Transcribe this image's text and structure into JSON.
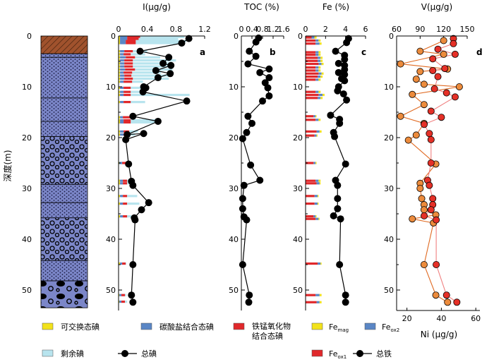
{
  "figure": {
    "depth_axis_label": "深度(m)",
    "depth_ticks": [
      "0",
      "10",
      "20",
      "30",
      "40",
      "50"
    ],
    "depth_range": [
      0,
      53
    ],
    "lithology": [
      {
        "name": "hatched-top",
        "from": 0,
        "to": 3.5,
        "fill": "#A0522D"
      },
      {
        "name": "blue-dotted-thin-1",
        "from": 3.5,
        "to": 4.2,
        "fill": "#7B86C8"
      },
      {
        "name": "blue-dotted-1",
        "from": 4.2,
        "to": 12.2,
        "fill": "#7B86C8"
      },
      {
        "name": "blue-dotted-2",
        "from": 12.2,
        "to": 16.8,
        "fill": "#7B86C8"
      },
      {
        "name": "blue-dotted-3",
        "from": 16.8,
        "to": 19.8,
        "fill": "#7B86C8"
      },
      {
        "name": "pebbly-1",
        "from": 19.8,
        "to": 29.2,
        "fill": "#7B86C8"
      },
      {
        "name": "blue-dotted-4",
        "from": 29.2,
        "to": 32.8,
        "fill": "#7B86C8"
      },
      {
        "name": "blue-dotted-5",
        "from": 32.8,
        "to": 35.8,
        "fill": "#7B86C8"
      },
      {
        "name": "pebbly-2",
        "from": 35.8,
        "to": 44.2,
        "fill": "#7B86C8"
      },
      {
        "name": "blue-dotted-6",
        "from": 44.2,
        "to": 48.2,
        "fill": "#7B86C8"
      },
      {
        "name": "cobbles",
        "from": 48.2,
        "to": 53.5,
        "fill": "#7B86C8"
      }
    ]
  },
  "chart_data": [
    {
      "id": "a",
      "type": "bar+line",
      "panel_label": "a",
      "title": "I(μg/g)",
      "xlim": [
        0,
        1.2
      ],
      "xticks": [
        "0",
        "0.4",
        "0.8",
        "1.2"
      ],
      "depth_range": [
        0,
        53
      ],
      "bar_depths": [
        0.2,
        0.6,
        1.0,
        1.4,
        3.0,
        3.6,
        4.2,
        4.8,
        5.4,
        6.0,
        6.6,
        7.2,
        7.8,
        8.4,
        9.0,
        10.2,
        11.0,
        11.6,
        13.0,
        16.0,
        16.6,
        17.0,
        18.8,
        19.4,
        25.0,
        28.5,
        29.0,
        31.5,
        33.0,
        35.5,
        44.8,
        51.0,
        52.3
      ],
      "bar_segments": [
        [
          0.02,
          0.1,
          0.18,
          0.62
        ],
        [
          0.02,
          0.1,
          0.16,
          0.55
        ],
        [
          0.02,
          0.08,
          0.14,
          0.7
        ],
        [
          0.02,
          0.08,
          0.14,
          0.63
        ],
        [
          0.02,
          0.06,
          0.12,
          0.2
        ],
        [
          0.02,
          0.05,
          0.1,
          0.2
        ],
        [
          0.02,
          0.08,
          0.13,
          0.35
        ],
        [
          0.02,
          0.06,
          0.12,
          0.6
        ],
        [
          0.02,
          0.06,
          0.12,
          0.55
        ],
        [
          0.02,
          0.06,
          0.12,
          0.55
        ],
        [
          0.02,
          0.07,
          0.14,
          0.52
        ],
        [
          0.02,
          0.05,
          0.12,
          0.4
        ],
        [
          0.02,
          0.06,
          0.1,
          0.55
        ],
        [
          0.02,
          0.06,
          0.12,
          0.5
        ],
        [
          0.02,
          0.05,
          0.12,
          0.15
        ],
        [
          0.02,
          0.05,
          0.1,
          0.22
        ],
        [
          0.02,
          0.05,
          0.1,
          0.2
        ],
        [
          0.02,
          0.05,
          0.1,
          0.82
        ],
        [
          0.02,
          0.05,
          0.1,
          0.2
        ],
        [
          0.02,
          0.04,
          0.1,
          0.04
        ],
        [
          0.02,
          0.05,
          0.1,
          0.4
        ],
        [
          0.02,
          0.05,
          0.1,
          0.4
        ],
        [
          0.02,
          0.05,
          0.08,
          0.12
        ],
        [
          0.02,
          0.05,
          0.08,
          0.08
        ],
        [
          0.01,
          0.04,
          0.06,
          0.03
        ],
        [
          0.02,
          0.04,
          0.06,
          0.06
        ],
        [
          0.02,
          0.04,
          0.06,
          0.1
        ],
        [
          0.02,
          0.04,
          0.06,
          0.14
        ],
        [
          0.02,
          0.04,
          0.06,
          0.17
        ],
        [
          0.02,
          0.04,
          0.06,
          0.06
        ],
        [
          0.02,
          0.03,
          0.05,
          0.01
        ],
        [
          0.01,
          0.03,
          0.05,
          0.02
        ],
        [
          0.01,
          0.03,
          0.05,
          0.03
        ]
      ],
      "segment_colors": [
        "#F2E21B",
        "#5A86C5",
        "#E0282B",
        "#B8E4EE"
      ],
      "line_points": [
        [
          0.98,
          0.5
        ],
        [
          0.88,
          1.4
        ],
        [
          0.3,
          3.0
        ],
        [
          0.7,
          4.2
        ],
        [
          0.62,
          5.4
        ],
        [
          0.73,
          5.8
        ],
        [
          0.52,
          6.8
        ],
        [
          0.72,
          7.4
        ],
        [
          0.55,
          8.2
        ],
        [
          0.35,
          10.0
        ],
        [
          0.38,
          10.2
        ],
        [
          0.34,
          11.0
        ],
        [
          0.95,
          12.8
        ],
        [
          0.2,
          15.8
        ],
        [
          0.55,
          16.8
        ],
        [
          0.12,
          19.4
        ],
        [
          0.35,
          19.2
        ],
        [
          0.1,
          20.4
        ],
        [
          0.14,
          25.2
        ],
        [
          0.18,
          28.6
        ],
        [
          0.2,
          29.4
        ],
        [
          0.42,
          32.8
        ],
        [
          0.32,
          34.2
        ],
        [
          0.22,
          35.8
        ],
        [
          0.23,
          36.2
        ],
        [
          0.2,
          45.0
        ],
        [
          0.18,
          51.0
        ],
        [
          0.2,
          52.4
        ]
      ]
    },
    {
      "id": "b",
      "type": "line",
      "panel_label": "b",
      "title": "TOC (%)",
      "xlim": [
        0,
        1.6
      ],
      "xticks": [
        "0",
        "0.4",
        "0.8",
        "1.2",
        "1.6"
      ],
      "depth_range": [
        0,
        53
      ],
      "line_points": [
        [
          0.65,
          0.4
        ],
        [
          0.55,
          1.2
        ],
        [
          0.3,
          3.0
        ],
        [
          0.55,
          4.0
        ],
        [
          0.25,
          5.5
        ],
        [
          1.05,
          6.5
        ],
        [
          0.7,
          7.2
        ],
        [
          1.05,
          8.2
        ],
        [
          0.9,
          9.2
        ],
        [
          1.0,
          10.2
        ],
        [
          1.05,
          11.8
        ],
        [
          0.8,
          12.8
        ],
        [
          0.25,
          15.8
        ],
        [
          0.4,
          17.2
        ],
        [
          0.2,
          19.0
        ],
        [
          0.05,
          20.2
        ],
        [
          0.35,
          25.4
        ],
        [
          0.7,
          28.4
        ],
        [
          0.1,
          29.4
        ],
        [
          0.05,
          32.0
        ],
        [
          0.05,
          34.0
        ],
        [
          0.1,
          35.6
        ],
        [
          0.2,
          36.2
        ],
        [
          0.05,
          45.0
        ],
        [
          0.3,
          51.0
        ],
        [
          0.28,
          52.4
        ]
      ]
    },
    {
      "id": "c",
      "type": "bar+line",
      "panel_label": "c",
      "title": "Fe (%)",
      "xlim": [
        0,
        6
      ],
      "xticks": [
        "0",
        "2",
        "4",
        "6"
      ],
      "depth_range": [
        0,
        53
      ],
      "bar_depths": [
        0.3,
        0.9,
        1.5,
        3.2,
        3.7,
        4.3,
        4.9,
        5.5,
        6.2,
        6.8,
        7.4,
        8.0,
        8.6,
        11.0,
        11.6,
        12.2,
        15.8,
        16.5,
        18.8,
        19.6,
        25.0,
        28.5,
        29.0,
        31.5,
        33.0,
        35.5,
        36.0,
        44.8,
        51.0,
        52.4
      ],
      "bar_segments": [
        [
          0.6,
          0.3,
          0.2
        ],
        [
          1.0,
          0.3,
          0.2
        ],
        [
          1.0,
          0.4,
          0.2
        ],
        [
          1.0,
          0.3,
          0.2
        ],
        [
          1.0,
          0.3,
          0.2
        ],
        [
          1.2,
          0.3,
          0.2
        ],
        [
          1.2,
          0.3,
          0.2
        ],
        [
          1.3,
          0.3,
          0.2
        ],
        [
          1.0,
          0.3,
          0.2
        ],
        [
          1.0,
          0.3,
          0.2
        ],
        [
          1.3,
          0.3,
          0.2
        ],
        [
          1.2,
          0.3,
          0.2
        ],
        [
          1.0,
          0.3,
          0.2
        ],
        [
          1.0,
          0.3,
          0.2
        ],
        [
          1.3,
          0.4,
          0.2
        ],
        [
          1.2,
          0.3,
          0.2
        ],
        [
          0.8,
          0.2,
          0.1
        ],
        [
          1.0,
          0.3,
          0.2
        ],
        [
          1.1,
          0.3,
          0.2
        ],
        [
          0.9,
          0.2,
          0.1
        ],
        [
          0.8,
          0.2,
          0.1
        ],
        [
          1.0,
          0.3,
          0.2
        ],
        [
          1.1,
          0.3,
          0.1
        ],
        [
          0.9,
          0.3,
          0.1
        ],
        [
          0.9,
          0.3,
          0.1
        ],
        [
          0.8,
          0.2,
          0.1
        ],
        [
          1.0,
          0.3,
          0.1
        ],
        [
          1.2,
          0.3,
          0.1
        ],
        [
          1.0,
          0.4,
          0.2
        ],
        [
          1.1,
          0.3,
          0.2
        ]
      ],
      "segment_colors": [
        "#E0282B",
        "#5A86C5",
        "#F2E21B"
      ],
      "line_points": [
        [
          4.3,
          0.5
        ],
        [
          4.1,
          1.3
        ],
        [
          3.0,
          3.0
        ],
        [
          3.9,
          3.8
        ],
        [
          3.9,
          4.6
        ],
        [
          3.3,
          5.4
        ],
        [
          3.9,
          5.8
        ],
        [
          3.9,
          6.6
        ],
        [
          3.3,
          7.2
        ],
        [
          3.9,
          7.6
        ],
        [
          3.6,
          8.4
        ],
        [
          3.9,
          8.8
        ],
        [
          3.3,
          10.0
        ],
        [
          3.2,
          10.8
        ],
        [
          3.8,
          11.4
        ],
        [
          4.1,
          12.6
        ],
        [
          2.5,
          15.6
        ],
        [
          3.4,
          16.4
        ],
        [
          3.4,
          17.2
        ],
        [
          2.8,
          19.0
        ],
        [
          2.9,
          19.8
        ],
        [
          4.0,
          25.2
        ],
        [
          3.0,
          28.4
        ],
        [
          3.2,
          29.4
        ],
        [
          3.2,
          32.0
        ],
        [
          3.2,
          34.0
        ],
        [
          2.8,
          35.4
        ],
        [
          3.5,
          36.0
        ],
        [
          3.4,
          45.0
        ],
        [
          4.0,
          51.0
        ],
        [
          4.0,
          52.4
        ]
      ]
    },
    {
      "id": "d",
      "type": "line",
      "panel_label": "d",
      "title": "V(μg/g)",
      "xlim": [
        60,
        150
      ],
      "xticks": [
        "60",
        "90",
        "120",
        "150"
      ],
      "xlabel_bottom": "Ni (μg/g)",
      "xlim_bottom": [
        14,
        55
      ],
      "xticks_bottom": [
        "20",
        "40",
        "60"
      ],
      "depth_range": [
        0,
        53
      ],
      "series": [
        {
          "name": "V",
          "axis": "top",
          "color": "#EC8B3C",
          "points": [
            [
              120,
              0.9
            ],
            [
              90,
              3.0
            ],
            [
              120,
              3.6
            ],
            [
              65,
              5.5
            ],
            [
              125,
              6.5
            ],
            [
              90,
              7.0
            ],
            [
              85,
              8.5
            ],
            [
              95,
              9.5
            ],
            [
              140,
              10.0
            ],
            [
              80,
              11.5
            ],
            [
              95,
              13.5
            ],
            [
              65,
              15.8
            ],
            [
              95,
              17.2
            ],
            [
              85,
              19.5
            ],
            [
              75,
              20.5
            ],
            [
              110,
              25.2
            ],
            [
              90,
              29.0
            ],
            [
              90,
              30.0
            ],
            [
              92,
              32.0
            ],
            [
              95,
              33.2
            ],
            [
              95,
              34.2
            ],
            [
              110,
              35.2
            ],
            [
              80,
              36.0
            ],
            [
              107,
              36.8
            ],
            [
              95,
              45.0
            ],
            [
              110,
              51.0
            ],
            [
              125,
              52.4
            ]
          ]
        },
        {
          "name": "Ni",
          "axis": "bottom",
          "color": "#E53027",
          "points": [
            [
              47,
              0.5
            ],
            [
              47,
              1.5
            ],
            [
              38,
              2.6
            ],
            [
              48,
              3.6
            ],
            [
              35,
              4.5
            ],
            [
              42,
              6.4
            ],
            [
              35,
              6.8
            ],
            [
              38,
              8.0
            ],
            [
              36,
              10.4
            ],
            [
              43,
              11.2
            ],
            [
              48,
              12.0
            ],
            [
              34,
              14.8
            ],
            [
              40,
              16.0
            ],
            [
              30,
              17.4
            ],
            [
              33,
              19.2
            ],
            [
              34,
              20.4
            ],
            [
              34,
              25.0
            ],
            [
              32,
              28.4
            ],
            [
              33,
              29.4
            ],
            [
              35,
              32.0
            ],
            [
              35,
              33.2
            ],
            [
              34,
              34.2
            ],
            [
              30,
              35.4
            ],
            [
              37,
              36.2
            ],
            [
              37,
              45.0
            ],
            [
              43,
              51.0
            ],
            [
              49,
              52.4
            ]
          ]
        }
      ]
    }
  ],
  "legend": {
    "left": [
      {
        "label": "可交换态碘",
        "color": "#F2E21B",
        "kind": "box"
      },
      {
        "label": "碳酸盐结合态碘",
        "color": "#5A86C5",
        "kind": "box"
      },
      {
        "label_line1": "铁锰氧化物",
        "label_line2": "结合态碘",
        "color": "#E0282B",
        "kind": "box"
      },
      {
        "label": "剩余碘",
        "color": "#B8E4EE",
        "kind": "box"
      },
      {
        "label": "总碘",
        "color": "#000000",
        "kind": "line"
      }
    ],
    "right": [
      {
        "label": "Fe",
        "sub": "mag",
        "color": "#F2E21B",
        "kind": "box"
      },
      {
        "label": "Fe",
        "sub": "ox2",
        "color": "#5A86C5",
        "kind": "box"
      },
      {
        "label": "Fe",
        "sub": "ox1",
        "color": "#E0282B",
        "kind": "box"
      },
      {
        "label": "总铁",
        "color": "#000000",
        "kind": "line"
      }
    ]
  }
}
